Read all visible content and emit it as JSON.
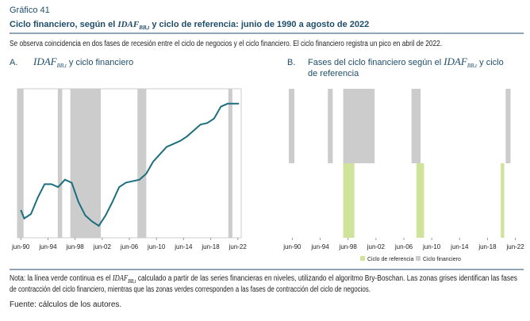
{
  "header": {
    "label": "Gráfico 41",
    "subtitle": [
      "Ciclo financiero, según el ",
      "IDAF",
      "BB,t",
      " y ciclo de referencia: junio de 1990 a agosto de 2022"
    ],
    "description": "Se observa coincidencia en dos fases de recesión entre el ciclo de negocios y el ciclo financiero. El ciclo financiero registra un pico en abril de 2022."
  },
  "chart_data": [
    {
      "type": "line",
      "letter": "A.",
      "title": [
        "IDAF",
        "BB,t",
        " y ciclo financiero"
      ],
      "color": "#1b6f7e",
      "shade_color": "#cccccc",
      "x": [
        1990.5,
        1991,
        1992,
        1993,
        1994,
        1995,
        1996,
        1997,
        1998,
        1999,
        2000,
        2001,
        2002,
        2003,
        2004,
        2005,
        2006,
        2007,
        2008,
        2009,
        2010,
        2011,
        2012,
        2013,
        2014,
        2015,
        2016,
        2017,
        2018,
        2019,
        2020,
        2021,
        2022,
        2022.67
      ],
      "values": [
        18.6,
        13,
        16,
        27,
        36,
        36,
        34,
        39,
        37,
        24,
        15,
        11,
        8,
        15,
        24,
        34,
        37,
        38,
        39,
        43,
        51,
        56,
        61,
        63,
        65,
        68,
        72,
        76,
        77,
        80,
        88,
        90,
        90,
        90
      ],
      "shaded_periods": [
        [
          1990.0,
          1990.9
        ],
        [
          1995.95,
          1996.6
        ],
        [
          1997.8,
          2002.3
        ],
        [
          2007.7,
          2009.0
        ],
        [
          2021.1,
          2021.7
        ]
      ],
      "xlim": [
        1990.0,
        2023.0
      ],
      "ylim": [
        0,
        100
      ],
      "xticks": [
        {
          "value": 1990.5,
          "label": "jun-90"
        },
        {
          "value": 1994.5,
          "label": "jun-94"
        },
        {
          "value": 1998.5,
          "label": "jun-98"
        },
        {
          "value": 2002.5,
          "label": "jun-02"
        },
        {
          "value": 2006.5,
          "label": "jun-06"
        },
        {
          "value": 2010.5,
          "label": "jun-10"
        },
        {
          "value": 2014.5,
          "label": "jun-14"
        },
        {
          "value": 2018.5,
          "label": "jun-18"
        },
        {
          "value": 2022.5,
          "label": "jun-22"
        }
      ]
    },
    {
      "type": "span",
      "letter": "B.",
      "title": [
        "Fases del ciclo financiero según el ",
        "IDAF",
        "BB,t",
        " y ciclo",
        "de referencia"
      ],
      "series": [
        {
          "name": "Ciclo de referencia",
          "color": "#cfe49a",
          "periods": [
            [
              1997.8,
              1999.4
            ],
            [
              2008.3,
              2009.4
            ],
            [
              2020.4,
              2020.9
            ]
          ]
        },
        {
          "name": "Ciclo financiero",
          "color": "#cccccc",
          "periods": [
            [
              1990.0,
              1990.8
            ],
            [
              1995.6,
              1996.3
            ],
            [
              1997.8,
              2002.3
            ],
            [
              2007.6,
              2008.9
            ],
            [
              2021.1,
              2021.8
            ]
          ]
        }
      ],
      "xlim": [
        1990.0,
        2023.0
      ],
      "xticks": [
        {
          "value": 1990.5,
          "label": "jun-90"
        },
        {
          "value": 1994.5,
          "label": "jun-94"
        },
        {
          "value": 1998.5,
          "label": "jun-98"
        },
        {
          "value": 2002.5,
          "label": "jun-02"
        },
        {
          "value": 2006.5,
          "label": "jun-06"
        },
        {
          "value": 2010.5,
          "label": "jun-10"
        },
        {
          "value": 2014.5,
          "label": "jun-14"
        },
        {
          "value": 2018.5,
          "label": "jun-18"
        },
        {
          "value": 2022.5,
          "label": "jun-22"
        }
      ]
    }
  ],
  "footer": {
    "note": [
      "Nota: la línea verde continua es el ",
      "IDAF",
      "BB,t",
      " calculado a partir de las series financieras en niveles, utilizando el algoritmo Bry-Boschan. Las zonas grises identifican las fases",
      "de contracción del ciclo financiero, mientras que las zonas verdes corresponden a las fases de contracción del ciclo de negocios."
    ],
    "source": "Fuente: cálculos de los autores."
  }
}
